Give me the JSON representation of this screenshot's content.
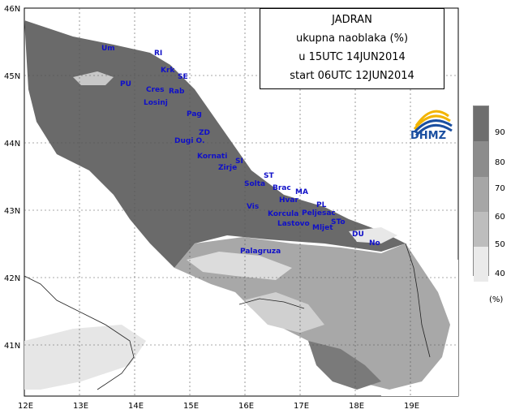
{
  "title": {
    "line1": "JADRAN",
    "line2": "ukupna naoblaka (%)",
    "line3": "u 15UTC 14JUN2014",
    "line4": "start 06UTC 12JUN2014"
  },
  "logo": {
    "text": "DHMZ",
    "icon": "dhmz-logo-icon"
  },
  "axes": {
    "lat_labels": [
      "46N",
      "45N",
      "44N",
      "43N",
      "42N",
      "41N"
    ],
    "lon_labels": [
      "12E",
      "13E",
      "14E",
      "15E",
      "16E",
      "17E",
      "18E",
      "19E"
    ]
  },
  "legend": {
    "unit": "(%)",
    "labels": [
      "90",
      "80",
      "70",
      "60",
      "50",
      "40"
    ],
    "colors": [
      "#6e6e6e",
      "#8c8c8c",
      "#a6a6a6",
      "#bdbdbd",
      "#d4d4d4",
      "#eaeaea"
    ]
  },
  "places": [
    {
      "name": "Um"
    },
    {
      "name": "RI"
    },
    {
      "name": "Krk"
    },
    {
      "name": "SE"
    },
    {
      "name": "PU"
    },
    {
      "name": "Cres"
    },
    {
      "name": "Rab"
    },
    {
      "name": "Losinj"
    },
    {
      "name": "Pag"
    },
    {
      "name": "ZD"
    },
    {
      "name": "Dugi O."
    },
    {
      "name": "Kornati"
    },
    {
      "name": "SI"
    },
    {
      "name": "Zirje"
    },
    {
      "name": "ST"
    },
    {
      "name": "Solta"
    },
    {
      "name": "Brac"
    },
    {
      "name": "MA"
    },
    {
      "name": "Hvar"
    },
    {
      "name": "Vis"
    },
    {
      "name": "PL"
    },
    {
      "name": "Korcula"
    },
    {
      "name": "Peljesac"
    },
    {
      "name": "Lastovo"
    },
    {
      "name": "Mljet"
    },
    {
      "name": "STo"
    },
    {
      "name": "DU"
    },
    {
      "name": "Palagruza"
    },
    {
      "name": "No"
    }
  ]
}
